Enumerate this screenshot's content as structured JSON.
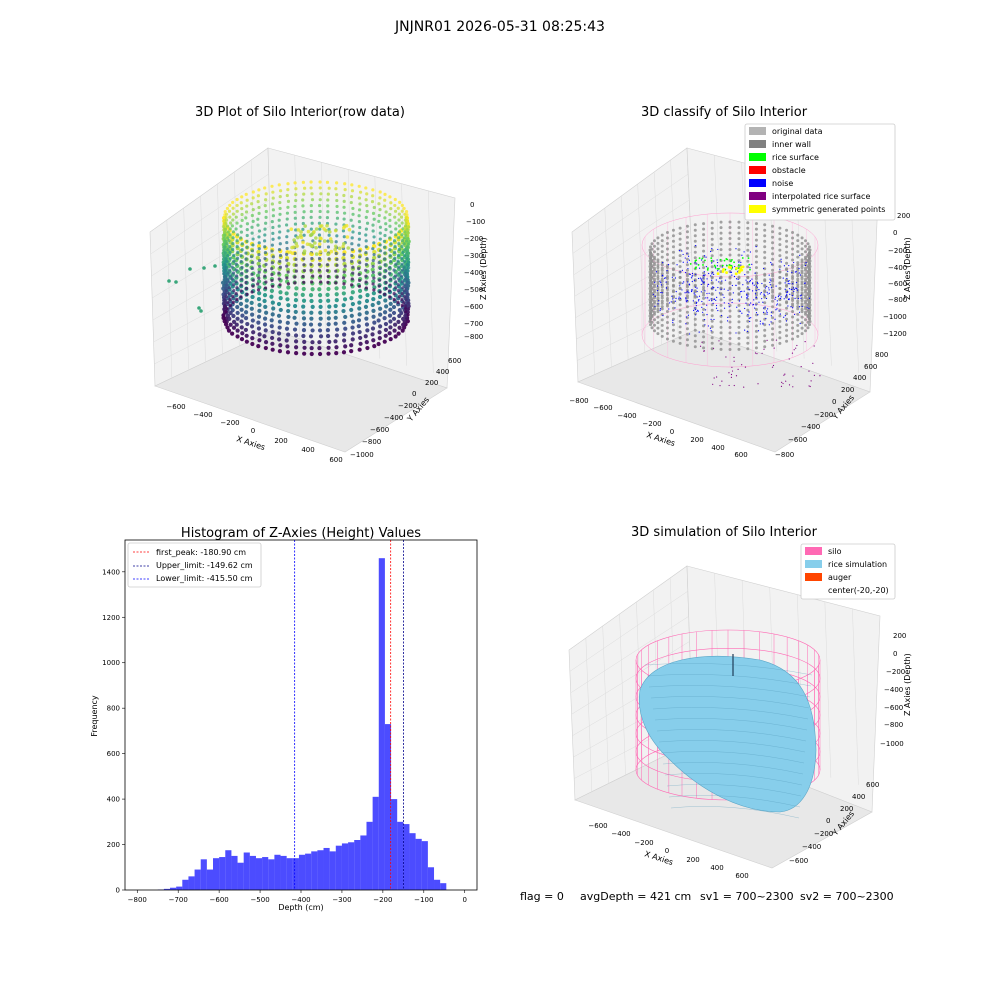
{
  "figure": {
    "suptitle": "JNJNR01 2026-05-31 08:25:43",
    "footer": {
      "flag": "flag = 0",
      "avg_depth": "avgDepth = 421 cm",
      "sv1": "sv1 = 700~2300",
      "sv2": "sv2 = 700~2300"
    }
  },
  "panels": {
    "raw": {
      "title": "3D Plot of Silo Interior(row data)",
      "x_label": "X Axies",
      "y_label": "Y Axies",
      "z_label": "Z Axies (Depth)",
      "x_ticks": [
        "−600",
        "−400",
        "−200",
        "0",
        "200",
        "400",
        "600"
      ],
      "y_ticks": [
        "600",
        "400",
        "200",
        "0",
        "−200",
        "−400",
        "−600",
        "−800",
        "−1000"
      ],
      "z_ticks": [
        "0",
        "−100",
        "−200",
        "−300",
        "−400",
        "−500",
        "−600",
        "−700",
        "−800"
      ],
      "colormap": "viridis"
    },
    "classify": {
      "title": "3D classify of Silo Interior",
      "x_label": "X Axies",
      "y_label": "Y Axies",
      "z_label": "Z Axies (Depth)",
      "x_ticks": [
        "−800",
        "−600",
        "−400",
        "−200",
        "0",
        "200",
        "400",
        "600"
      ],
      "y_ticks": [
        "800",
        "600",
        "400",
        "200",
        "0",
        "−200",
        "−400",
        "−600",
        "−800"
      ],
      "z_ticks": [
        "200",
        "0",
        "−200",
        "−400",
        "−600",
        "−800",
        "−1000",
        "−1200"
      ],
      "legend": [
        {
          "label": "original data",
          "color": "#b3b3b3"
        },
        {
          "label": "inner wall",
          "color": "#808080"
        },
        {
          "label": "rice surface",
          "color": "#00ff00"
        },
        {
          "label": "obstacle",
          "color": "#ff0000"
        },
        {
          "label": "noise",
          "color": "#0000ff"
        },
        {
          "label": "interpolated rice surface",
          "color": "#800080"
        },
        {
          "label": "symmetric generated points",
          "color": "#ffff00"
        }
      ]
    },
    "simulation": {
      "title": "3D simulation of Silo Interior",
      "x_label": "X Axies",
      "y_label": "Y Axies",
      "z_label": "Z Axies (Depth)",
      "x_ticks": [
        "−600",
        "−400",
        "−200",
        "0",
        "200",
        "400",
        "600"
      ],
      "y_ticks": [
        "600",
        "400",
        "200",
        "0",
        "−200",
        "−400",
        "−600"
      ],
      "z_ticks": [
        "200",
        "0",
        "−200",
        "−400",
        "−600",
        "−800",
        "−1000"
      ],
      "legend": [
        {
          "label": "silo",
          "color": "#ff69b4"
        },
        {
          "label": "rice simulation",
          "color": "#87ceeb"
        },
        {
          "label": "auger",
          "color": "#ff4500"
        },
        {
          "label": "center(-20,-20)",
          "color": "none"
        }
      ]
    }
  },
  "chart_data": {
    "type": "bar",
    "title": "Histogram of Z-Axies (Height) Values",
    "xlabel": "Depth (cm)",
    "ylabel": "Frequency",
    "xlim": [
      -830,
      30
    ],
    "ylim": [
      0,
      1540
    ],
    "x_ticks": [
      -800,
      -700,
      -600,
      -500,
      -400,
      -300,
      -200,
      -100,
      0
    ],
    "y_ticks": [
      0,
      200,
      400,
      600,
      800,
      1000,
      1200,
      1400
    ],
    "bar_color": "#0000ff",
    "bin_edges": [
      -750,
      -735,
      -720,
      -705,
      -690,
      -675,
      -660,
      -645,
      -630,
      -615,
      -600,
      -585,
      -570,
      -555,
      -540,
      -525,
      -510,
      -495,
      -480,
      -465,
      -450,
      -435,
      -420,
      -405,
      -390,
      -375,
      -360,
      -345,
      -330,
      -315,
      -300,
      -285,
      -270,
      -255,
      -240,
      -225,
      -210,
      -195,
      -180,
      -165,
      -150,
      -135,
      -120,
      -105,
      -90,
      -75,
      -60,
      -45,
      -30,
      -15,
      0
    ],
    "values": [
      2,
      5,
      10,
      15,
      45,
      60,
      90,
      135,
      90,
      140,
      145,
      175,
      150,
      120,
      165,
      150,
      140,
      145,
      135,
      155,
      150,
      140,
      140,
      155,
      160,
      170,
      175,
      185,
      170,
      195,
      205,
      210,
      220,
      240,
      300,
      410,
      1460,
      730,
      400,
      300,
      290,
      250,
      225,
      215,
      100,
      45,
      30,
      0,
      0,
      0
    ],
    "lines": [
      {
        "label": "first_peak: -180.90 cm",
        "x": -180.9,
        "color": "#ff0000"
      },
      {
        "label": "Upper_limit: -149.62 cm",
        "x": -149.62,
        "color": "#00008b"
      },
      {
        "label": "Lower_limit: -415.50 cm",
        "x": -415.5,
        "color": "#0000ff"
      }
    ],
    "legend_position": "upper-left",
    "grid": false
  }
}
